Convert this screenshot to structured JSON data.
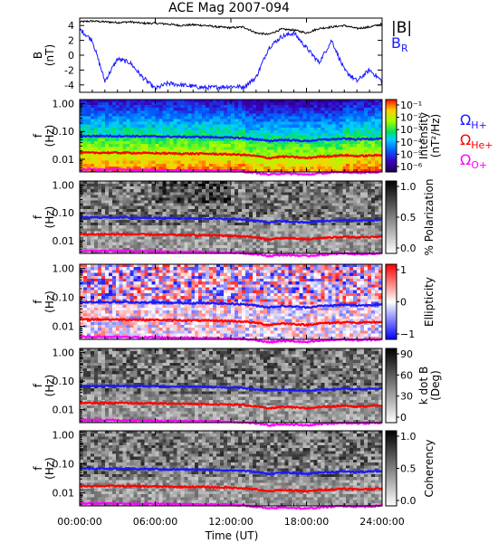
{
  "title": "ACE Mag 2007-094",
  "xaxis": {
    "label": "Time (UT)",
    "ticks": [
      "00:00:00",
      "06:00:00",
      "12:00:00",
      "18:00:00",
      "24:00:00"
    ],
    "range_hours": [
      0,
      24
    ]
  },
  "legends": {
    "b_total": "|B|",
    "b_r_main": "B",
    "b_r_sub": "R",
    "omega_glyph": "Ω",
    "ions": [
      {
        "sub": "H+",
        "color": "#1a1aff"
      },
      {
        "sub": "He+",
        "color": "#ff0000"
      },
      {
        "sub": "O+",
        "color": "#ff00ff"
      }
    ]
  },
  "chart_data": [
    {
      "type": "line",
      "name": "B",
      "ylabel_main": "B",
      "ylabel_unit": "(nT)",
      "ylim": [
        -5,
        5
      ],
      "yticks": [
        "4",
        "2",
        "0",
        "-2",
        "-4"
      ],
      "x_hours": [
        0,
        1,
        2,
        3,
        4,
        5,
        6,
        7,
        8,
        9,
        10,
        11,
        12,
        13,
        14,
        15,
        16,
        17,
        18,
        19,
        20,
        21,
        22,
        23,
        24
      ],
      "series": [
        {
          "name": "|B|",
          "color": "#000000",
          "values": [
            4.5,
            4.6,
            4.5,
            4.4,
            4.5,
            4.3,
            4.3,
            4.2,
            4.0,
            4.1,
            4.0,
            3.8,
            3.7,
            3.8,
            3.0,
            2.8,
            3.5,
            3.4,
            3.0,
            3.6,
            3.8,
            4.0,
            3.6,
            3.8,
            4.2
          ]
        },
        {
          "name": "B_R",
          "color": "#1a1aff",
          "values": [
            3.5,
            2.0,
            -3.5,
            -0.5,
            -1.0,
            -3.0,
            -4.5,
            -3.8,
            -4.0,
            -4.2,
            -4.4,
            -4.3,
            -4.2,
            -4.3,
            -3.0,
            1.0,
            2.5,
            3.0,
            1.0,
            -1.0,
            2.0,
            -2.0,
            -3.5,
            -2.0,
            -3.5
          ]
        }
      ]
    },
    {
      "type": "heatmap",
      "name": "Intensity",
      "ylabel_main": "f",
      "ylabel_unit": "(Hz)",
      "ytick_labels": [
        "1.00",
        "0.10",
        "0.01"
      ],
      "colorbar": {
        "label": "Intensity",
        "unit": "(nT²/Hz)",
        "ticks": [
          "10⁻¹",
          "10⁻²",
          "10⁻³",
          "10⁻⁴",
          "10⁻⁵",
          "10⁻⁶"
        ],
        "colormap": "rainbow"
      }
    },
    {
      "type": "heatmap",
      "name": "% Polarization",
      "ylabel_main": "f",
      "ylabel_unit": "(Hz)",
      "ytick_labels": [
        "1.00",
        "0.10",
        "0.01"
      ],
      "colorbar": {
        "label": "% Polarization",
        "unit": "",
        "ticks": [
          "1.0",
          "0.5",
          "0.0"
        ],
        "colormap": "gray"
      }
    },
    {
      "type": "heatmap",
      "name": "Ellipticity",
      "ylabel_main": "f",
      "ylabel_unit": "(Hz)",
      "ytick_labels": [
        "1.00",
        "0.10",
        "0.01"
      ],
      "colorbar": {
        "label": "Ellipticity",
        "unit": "",
        "ticks": [
          "1",
          "0",
          "−1"
        ],
        "colormap": "bwr"
      }
    },
    {
      "type": "heatmap",
      "name": "k dot B",
      "ylabel_main": "f",
      "ylabel_unit": "(Hz)",
      "ytick_labels": [
        "1.00",
        "0.10",
        "0.01"
      ],
      "colorbar": {
        "label": "k dot B",
        "unit": "(Deg)",
        "ticks": [
          "90",
          "60",
          "30",
          "0"
        ],
        "colormap": "gray"
      }
    },
    {
      "type": "heatmap",
      "name": "Coherency",
      "ylabel_main": "f",
      "ylabel_unit": "(Hz)",
      "ytick_labels": [
        "1.00",
        "0.10",
        "0.01"
      ],
      "colorbar": {
        "label": "Coherency",
        "unit": "",
        "ticks": [
          "1.0",
          "0.5",
          "0.0"
        ],
        "colormap": "gray"
      }
    }
  ],
  "gyrofrequencies": {
    "x_hours": [
      0,
      2,
      4,
      6,
      8,
      10,
      12,
      13,
      14,
      15,
      16,
      17,
      18,
      19,
      20,
      21,
      22,
      24
    ],
    "H+": [
      0.068,
      0.069,
      0.068,
      0.066,
      0.064,
      0.063,
      0.06,
      0.058,
      0.052,
      0.045,
      0.05,
      0.048,
      0.045,
      0.05,
      0.052,
      0.055,
      0.052,
      0.056
    ],
    "He+": [
      0.017,
      0.0172,
      0.017,
      0.0165,
      0.016,
      0.0158,
      0.015,
      0.0145,
      0.013,
      0.011,
      0.0125,
      0.012,
      0.011,
      0.0125,
      0.013,
      0.014,
      0.013,
      0.014
    ],
    "O+": [
      0.0043,
      0.0043,
      0.0042,
      0.0041,
      0.004,
      0.0039,
      0.0038,
      0.0036,
      0.0033,
      0.0028,
      0.0031,
      0.003,
      0.0028,
      0.0031,
      0.0033,
      0.0035,
      0.0033,
      0.0035
    ]
  }
}
